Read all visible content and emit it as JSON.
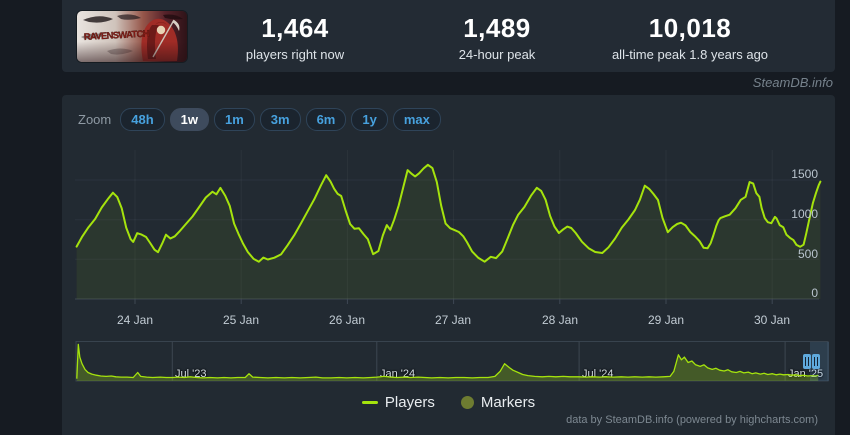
{
  "header": {
    "game_logo_text": "RAVENSWATCH",
    "stats": [
      {
        "value": "1,464",
        "label": "players right now"
      },
      {
        "value": "1,489",
        "label": "24-hour peak"
      },
      {
        "value": "10,018",
        "label": "all-time peak 1.8 years ago"
      }
    ],
    "watermark": "SteamDB.info"
  },
  "toolbar": {
    "zoom_label": "Zoom",
    "ranges": [
      "48h",
      "1w",
      "1m",
      "3m",
      "6m",
      "1y",
      "max"
    ],
    "selected": "1w"
  },
  "chart_data": {
    "type": "line",
    "title": "",
    "ylabel": "players",
    "ylim": [
      0,
      1878
    ],
    "grid": true,
    "legend_position": "bottom",
    "yticks": [
      "0",
      "500",
      "1000",
      "1500"
    ],
    "xticks": [
      "24 Jan",
      "25 Jan",
      "26 Jan",
      "27 Jan",
      "28 Jan",
      "29 Jan",
      "30 Jan"
    ],
    "x_unit": "hours from 24 Jan 00:00",
    "legend": [
      {
        "label": "Players",
        "marker": "line",
        "color": "#a5e30d"
      },
      {
        "label": "Markers",
        "marker": "circle",
        "color": "#6e7c31"
      }
    ],
    "series": [
      {
        "name": "Players",
        "color": "#a5e30d",
        "points": [
          [
            -13.2,
            660
          ],
          [
            -12,
            780
          ],
          [
            -10.5,
            905
          ],
          [
            -9,
            1010
          ],
          [
            -7.5,
            1155
          ],
          [
            -6,
            1270
          ],
          [
            -5,
            1340
          ],
          [
            -4,
            1285
          ],
          [
            -3,
            1145
          ],
          [
            -2,
            900
          ],
          [
            -1,
            755
          ],
          [
            -0.4,
            720
          ],
          [
            0.5,
            830
          ],
          [
            1.5,
            812
          ],
          [
            2.5,
            782
          ],
          [
            3.5,
            700
          ],
          [
            4.4,
            622
          ],
          [
            5.2,
            590
          ],
          [
            6.2,
            705
          ],
          [
            7,
            810
          ],
          [
            8,
            762
          ],
          [
            9,
            790
          ],
          [
            10,
            850
          ],
          [
            11.5,
            945
          ],
          [
            13,
            1040
          ],
          [
            14.5,
            1160
          ],
          [
            16,
            1280
          ],
          [
            17.5,
            1352
          ],
          [
            18.4,
            1320
          ],
          [
            19.3,
            1400
          ],
          [
            20.4,
            1300
          ],
          [
            21.4,
            1175
          ],
          [
            22.4,
            950
          ],
          [
            23.4,
            820
          ],
          [
            24.4,
            700
          ],
          [
            25.5,
            592
          ],
          [
            26.8,
            505
          ],
          [
            28,
            470
          ],
          [
            29,
            522
          ],
          [
            30,
            498
          ],
          [
            31.5,
            520
          ],
          [
            33,
            562
          ],
          [
            34.5,
            680
          ],
          [
            36,
            805
          ],
          [
            37.5,
            952
          ],
          [
            39,
            1105
          ],
          [
            40.5,
            1255
          ],
          [
            42,
            1432
          ],
          [
            43.2,
            1560
          ],
          [
            44.2,
            1478
          ],
          [
            45,
            1390
          ],
          [
            45.8,
            1325
          ],
          [
            46.6,
            1298
          ],
          [
            47.6,
            1115
          ],
          [
            48.6,
            945
          ],
          [
            49.6,
            885
          ],
          [
            50.6,
            892
          ],
          [
            51.6,
            820
          ],
          [
            52.6,
            755
          ],
          [
            53.8,
            565
          ],
          [
            55,
            605
          ],
          [
            56,
            800
          ],
          [
            56.9,
            932
          ],
          [
            57.7,
            872
          ],
          [
            58.6,
            1005
          ],
          [
            59.6,
            1180
          ],
          [
            60.6,
            1405
          ],
          [
            61.6,
            1625
          ],
          [
            62.6,
            1575
          ],
          [
            63.3,
            1545
          ],
          [
            64.2,
            1585
          ],
          [
            65.2,
            1645
          ],
          [
            66.2,
            1692
          ],
          [
            67.2,
            1650
          ],
          [
            68.2,
            1475
          ],
          [
            69.2,
            1175
          ],
          [
            70.2,
            950
          ],
          [
            71.2,
            892
          ],
          [
            72.2,
            868
          ],
          [
            73.2,
            845
          ],
          [
            74.2,
            790
          ],
          [
            75,
            718
          ],
          [
            76.2,
            598
          ],
          [
            77.6,
            518
          ],
          [
            79,
            470
          ],
          [
            80.4,
            532
          ],
          [
            81.6,
            515
          ],
          [
            83,
            600
          ],
          [
            84.2,
            762
          ],
          [
            85.4,
            930
          ],
          [
            86.6,
            1062
          ],
          [
            88,
            1160
          ],
          [
            89.5,
            1302
          ],
          [
            90.8,
            1402
          ],
          [
            91.8,
            1362
          ],
          [
            92.8,
            1250
          ],
          [
            93.8,
            1048
          ],
          [
            94.8,
            912
          ],
          [
            95.8,
            832
          ],
          [
            96.8,
            878
          ],
          [
            97.7,
            912
          ],
          [
            98.6,
            895
          ],
          [
            99.6,
            832
          ],
          [
            101,
            722
          ],
          [
            102.5,
            640
          ],
          [
            104,
            592
          ],
          [
            105.6,
            580
          ],
          [
            107,
            652
          ],
          [
            108.5,
            762
          ],
          [
            110,
            900
          ],
          [
            111.5,
            1002
          ],
          [
            113,
            1122
          ],
          [
            114.1,
            1252
          ],
          [
            115.2,
            1428
          ],
          [
            116.2,
            1388
          ],
          [
            117.2,
            1322
          ],
          [
            118.2,
            1248
          ],
          [
            119.2,
            1022
          ],
          [
            120.4,
            842
          ],
          [
            121.5,
            905
          ],
          [
            122.5,
            945
          ],
          [
            123.4,
            962
          ],
          [
            124.4,
            928
          ],
          [
            125.5,
            845
          ],
          [
            126.6,
            788
          ],
          [
            127.6,
            728
          ],
          [
            128.5,
            645
          ],
          [
            129.4,
            640
          ],
          [
            130.1,
            705
          ],
          [
            130.7,
            800
          ],
          [
            131.4,
            925
          ],
          [
            131.9,
            995
          ],
          [
            132.3,
            1020
          ],
          [
            133.3,
            1042
          ],
          [
            134.4,
            1062
          ],
          [
            135.7,
            1145
          ],
          [
            136.9,
            1250
          ],
          [
            138,
            1288
          ],
          [
            138.9,
            1475
          ],
          [
            139.7,
            1455
          ],
          [
            140.4,
            1335
          ],
          [
            141.1,
            1288
          ],
          [
            141.6,
            1148
          ],
          [
            142.3,
            1022
          ],
          [
            143,
            968
          ],
          [
            143.8,
            955
          ],
          [
            144.6,
            1035
          ],
          [
            145,
            1015
          ],
          [
            145.7,
            932
          ],
          [
            146.5,
            905
          ],
          [
            147.2,
            812
          ],
          [
            148,
            772
          ],
          [
            148.8,
            742
          ],
          [
            149.5,
            682
          ],
          [
            150.3,
            658
          ],
          [
            151.1,
            685
          ],
          [
            151.7,
            830
          ],
          [
            152.5,
            1035
          ],
          [
            153.2,
            1210
          ],
          [
            153.9,
            1338
          ],
          [
            154.5,
            1435
          ],
          [
            154.9,
            1480
          ]
        ]
      }
    ]
  },
  "navigator": {
    "labels": [
      "Jul '23",
      "Jan '24",
      "Jul '24",
      "Jan '25"
    ],
    "gridlines_fx": [
      0.128,
      0.4,
      0.669,
      0.943
    ],
    "points": [
      [
        0.001,
        0.06
      ],
      [
        0.003,
        0.95
      ],
      [
        0.005,
        0.62
      ],
      [
        0.008,
        0.45
      ],
      [
        0.012,
        0.3
      ],
      [
        0.016,
        0.22
      ],
      [
        0.021,
        0.18
      ],
      [
        0.027,
        0.15
      ],
      [
        0.033,
        0.13
      ],
      [
        0.04,
        0.12
      ],
      [
        0.047,
        0.13
      ],
      [
        0.053,
        0.11
      ],
      [
        0.06,
        0.1
      ],
      [
        0.068,
        0.1
      ],
      [
        0.076,
        0.09
      ],
      [
        0.082,
        0.22
      ],
      [
        0.086,
        0.12
      ],
      [
        0.094,
        0.1
      ],
      [
        0.102,
        0.09
      ],
      [
        0.112,
        0.1
      ],
      [
        0.12,
        0.09
      ],
      [
        0.128,
        0.09
      ],
      [
        0.136,
        0.1
      ],
      [
        0.144,
        0.09
      ],
      [
        0.152,
        0.11
      ],
      [
        0.16,
        0.09
      ],
      [
        0.169,
        0.08
      ],
      [
        0.178,
        0.09
      ],
      [
        0.188,
        0.08
      ],
      [
        0.197,
        0.09
      ],
      [
        0.206,
        0.08
      ],
      [
        0.215,
        0.09
      ],
      [
        0.225,
        0.09
      ],
      [
        0.23,
        0.19
      ],
      [
        0.235,
        0.1
      ],
      [
        0.245,
        0.09
      ],
      [
        0.255,
        0.08
      ],
      [
        0.266,
        0.09
      ],
      [
        0.277,
        0.08
      ],
      [
        0.287,
        0.09
      ],
      [
        0.298,
        0.08
      ],
      [
        0.309,
        0.09
      ],
      [
        0.319,
        0.1
      ],
      [
        0.328,
        0.08
      ],
      [
        0.339,
        0.08
      ],
      [
        0.35,
        0.09
      ],
      [
        0.36,
        0.08
      ],
      [
        0.371,
        0.09
      ],
      [
        0.382,
        0.08
      ],
      [
        0.392,
        0.09
      ],
      [
        0.4,
        0.1
      ],
      [
        0.41,
        0.12
      ],
      [
        0.418,
        0.1
      ],
      [
        0.427,
        0.09
      ],
      [
        0.436,
        0.1
      ],
      [
        0.445,
        0.09
      ],
      [
        0.455,
        0.1
      ],
      [
        0.464,
        0.09
      ],
      [
        0.473,
        0.08
      ],
      [
        0.484,
        0.09
      ],
      [
        0.495,
        0.08
      ],
      [
        0.505,
        0.09
      ],
      [
        0.516,
        0.09
      ],
      [
        0.527,
        0.08
      ],
      [
        0.537,
        0.09
      ],
      [
        0.548,
        0.09
      ],
      [
        0.557,
        0.12
      ],
      [
        0.564,
        0.25
      ],
      [
        0.57,
        0.45
      ],
      [
        0.576,
        0.35
      ],
      [
        0.581,
        0.28
      ],
      [
        0.588,
        0.22
      ],
      [
        0.594,
        0.17
      ],
      [
        0.601,
        0.14
      ],
      [
        0.61,
        0.12
      ],
      [
        0.62,
        0.11
      ],
      [
        0.629,
        0.12
      ],
      [
        0.638,
        0.11
      ],
      [
        0.648,
        0.12
      ],
      [
        0.657,
        0.11
      ],
      [
        0.669,
        0.11
      ],
      [
        0.678,
        0.1
      ],
      [
        0.687,
        0.11
      ],
      [
        0.697,
        0.1
      ],
      [
        0.706,
        0.11
      ],
      [
        0.715,
        0.1
      ],
      [
        0.725,
        0.11
      ],
      [
        0.734,
        0.1
      ],
      [
        0.743,
        0.11
      ],
      [
        0.753,
        0.1
      ],
      [
        0.762,
        0.11
      ],
      [
        0.771,
        0.1
      ],
      [
        0.781,
        0.11
      ],
      [
        0.79,
        0.12
      ],
      [
        0.795,
        0.25
      ],
      [
        0.801,
        0.68
      ],
      [
        0.805,
        0.55
      ],
      [
        0.809,
        0.62
      ],
      [
        0.814,
        0.48
      ],
      [
        0.819,
        0.52
      ],
      [
        0.824,
        0.42
      ],
      [
        0.83,
        0.38
      ],
      [
        0.835,
        0.42
      ],
      [
        0.84,
        0.34
      ],
      [
        0.846,
        0.3
      ],
      [
        0.851,
        0.33
      ],
      [
        0.856,
        0.28
      ],
      [
        0.862,
        0.26
      ],
      [
        0.867,
        0.29
      ],
      [
        0.872,
        0.24
      ],
      [
        0.878,
        0.22
      ],
      [
        0.883,
        0.25
      ],
      [
        0.888,
        0.21
      ],
      [
        0.894,
        0.23
      ],
      [
        0.899,
        0.19
      ],
      [
        0.904,
        0.21
      ],
      [
        0.91,
        0.18
      ],
      [
        0.915,
        0.2
      ],
      [
        0.92,
        0.17
      ],
      [
        0.926,
        0.19
      ],
      [
        0.931,
        0.16
      ],
      [
        0.936,
        0.18
      ],
      [
        0.941,
        0.16
      ],
      [
        0.947,
        0.17
      ],
      [
        0.952,
        0.15
      ],
      [
        0.957,
        0.16
      ],
      [
        0.963,
        0.14
      ],
      [
        0.968,
        0.15
      ],
      [
        0.973,
        0.13
      ],
      [
        0.979,
        0.14
      ],
      [
        0.983,
        0.13
      ],
      [
        0.987,
        0.15
      ]
    ]
  },
  "footer": {
    "credits": "data by SteamDB.info (powered by highcharts.com)"
  }
}
